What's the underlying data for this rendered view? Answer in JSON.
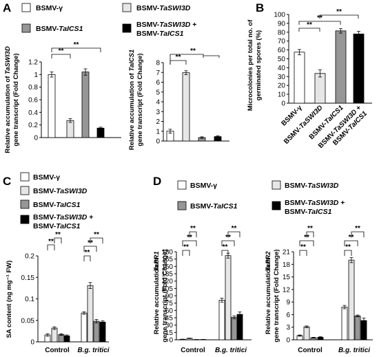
{
  "panels": {
    "A": "A",
    "B": "B",
    "C": "C",
    "D": "D"
  },
  "legend": {
    "bsmv": "BSMV-γ",
    "taswi3d_pre": "BSMV-",
    "taswi3d": "TaSWI3D",
    "tacics1_pre": "BSMV-",
    "tacics1": "TaICS1",
    "combo_pre": "BSMV-",
    "combo_a": "TaSWI3D",
    "combo_plus": " +",
    "combo_pre2": "BSMV-",
    "combo_b": "TaICS1"
  },
  "colors": {
    "bsmv": "#ffffff",
    "taswi3d": "#e6e6e6",
    "tacics1": "#969696",
    "combo": "#000000"
  },
  "sig_label": "**",
  "chart_data": [
    {
      "id": "A1",
      "type": "bar",
      "ylabel_line1_pre": "Relative accumulation of ",
      "ylabel_line1_it": "TaSWI3D",
      "ylabel_line2": "gene transcript  (Fold Change)",
      "ylim": [
        0,
        1.2
      ],
      "yticks": [
        "0",
        "0.2",
        "0.4",
        "0.6",
        "0.8",
        "1",
        "1.2"
      ],
      "series": [
        {
          "values": [
            1.0,
            0.27,
            1.04,
            0.15
          ],
          "errors": [
            0.04,
            0.03,
            0.05,
            0.015
          ]
        }
      ]
    },
    {
      "id": "A2",
      "type": "bar",
      "ylabel_line1_pre": "Relative accumulation of ",
      "ylabel_line1_it": "TaICS1",
      "ylabel_line2": "gene transcript  (Fold Change)",
      "ylim": [
        0,
        8
      ],
      "yticks": [
        "0",
        "1",
        "2",
        "3",
        "4",
        "5",
        "6",
        "7",
        "8"
      ],
      "series": [
        {
          "values": [
            1.0,
            6.97,
            0.35,
            0.45
          ],
          "errors": [
            0.2,
            0.2,
            0.08,
            0.08
          ]
        }
      ]
    },
    {
      "id": "B",
      "type": "bar",
      "ylabel_line1": "Microcolonies per total no. of",
      "ylabel_line2": "germinated spores (%)",
      "ylim": [
        0,
        100
      ],
      "yticks": [
        "0",
        "10",
        "20",
        "30",
        "40",
        "50",
        "60",
        "70",
        "80",
        "90",
        "100"
      ],
      "categories": [
        {
          "pre": "BSMV-",
          "it": "",
          "plain": "γ"
        },
        {
          "pre": "BSMV-",
          "it": "TaSWI3D",
          "plain": ""
        },
        {
          "pre": "BSMV-",
          "it": "TaICS1",
          "plain": ""
        },
        {
          "pre": "BSMV-",
          "it": "TaSWI3D",
          "plain": " +",
          "pre2": "BSMV-",
          "it2": "TaICS1"
        }
      ],
      "series": [
        {
          "values": [
            57.5,
            33.5,
            81.5,
            78
          ],
          "errors": [
            3,
            4,
            2.5,
            3
          ]
        }
      ]
    },
    {
      "id": "C",
      "type": "bar",
      "ylabel": "SA content (ng mg⁻¹ FW)",
      "ylim": [
        0,
        0.2
      ],
      "yticks": [
        "0",
        "0.05",
        "0.1",
        "0.15",
        "0.2"
      ],
      "categories": [
        "Control",
        "B.g. tritici"
      ],
      "series": [
        {
          "values": [
            0.016,
            0.067
          ],
          "errors": [
            0.003,
            0.003
          ]
        },
        {
          "values": [
            0.032,
            0.131
          ],
          "errors": [
            0.003,
            0.007
          ]
        },
        {
          "values": [
            0.017,
            0.048
          ],
          "errors": [
            0.002,
            0.004
          ]
        },
        {
          "values": [
            0.014,
            0.046
          ],
          "errors": [
            0.002,
            0.003
          ]
        }
      ]
    },
    {
      "id": "D1",
      "type": "bar",
      "ylabel_line1": "Relative accumulation of",
      "ylabel_line2_it": "TaPR1",
      "ylabel_line3": "gene transcript  (Fold Change)",
      "ylim": [
        0,
        180
      ],
      "yticks": [
        "0",
        "15",
        "30",
        "45",
        "60",
        "75",
        "90",
        "105",
        "120",
        "135",
        "150",
        "165",
        "180"
      ],
      "categories": [
        "Control",
        "B.g. tritici"
      ],
      "series": [
        {
          "values": [
            1.0,
            81
          ],
          "errors": [
            0.3,
            4
          ]
        },
        {
          "values": [
            3.0,
            172
          ],
          "errors": [
            0.5,
            5
          ]
        },
        {
          "values": [
            0.5,
            46
          ],
          "errors": [
            0.2,
            3
          ]
        },
        {
          "values": [
            0.7,
            52
          ],
          "errors": [
            0.2,
            5
          ]
        }
      ]
    },
    {
      "id": "D2",
      "type": "bar",
      "ylabel_line1": "Relative accumulation of",
      "ylabel_line2_it": "TaPR2",
      "ylabel_line3": "gene transcript  (Fold Change)",
      "ylim": [
        0,
        21
      ],
      "yticks": [
        "0",
        "3",
        "6",
        "9",
        "12",
        "15",
        "18",
        "21"
      ],
      "categories": [
        "Control",
        "B.g. tritici"
      ],
      "series": [
        {
          "values": [
            1.0,
            7.8
          ],
          "errors": [
            0.15,
            0.4
          ]
        },
        {
          "values": [
            3.1,
            19.0
          ],
          "errors": [
            0.2,
            0.6
          ]
        },
        {
          "values": [
            0.5,
            5.7
          ],
          "errors": [
            0.1,
            0.2
          ]
        },
        {
          "values": [
            0.6,
            4.6
          ],
          "errors": [
            0.15,
            0.6
          ]
        }
      ]
    }
  ]
}
